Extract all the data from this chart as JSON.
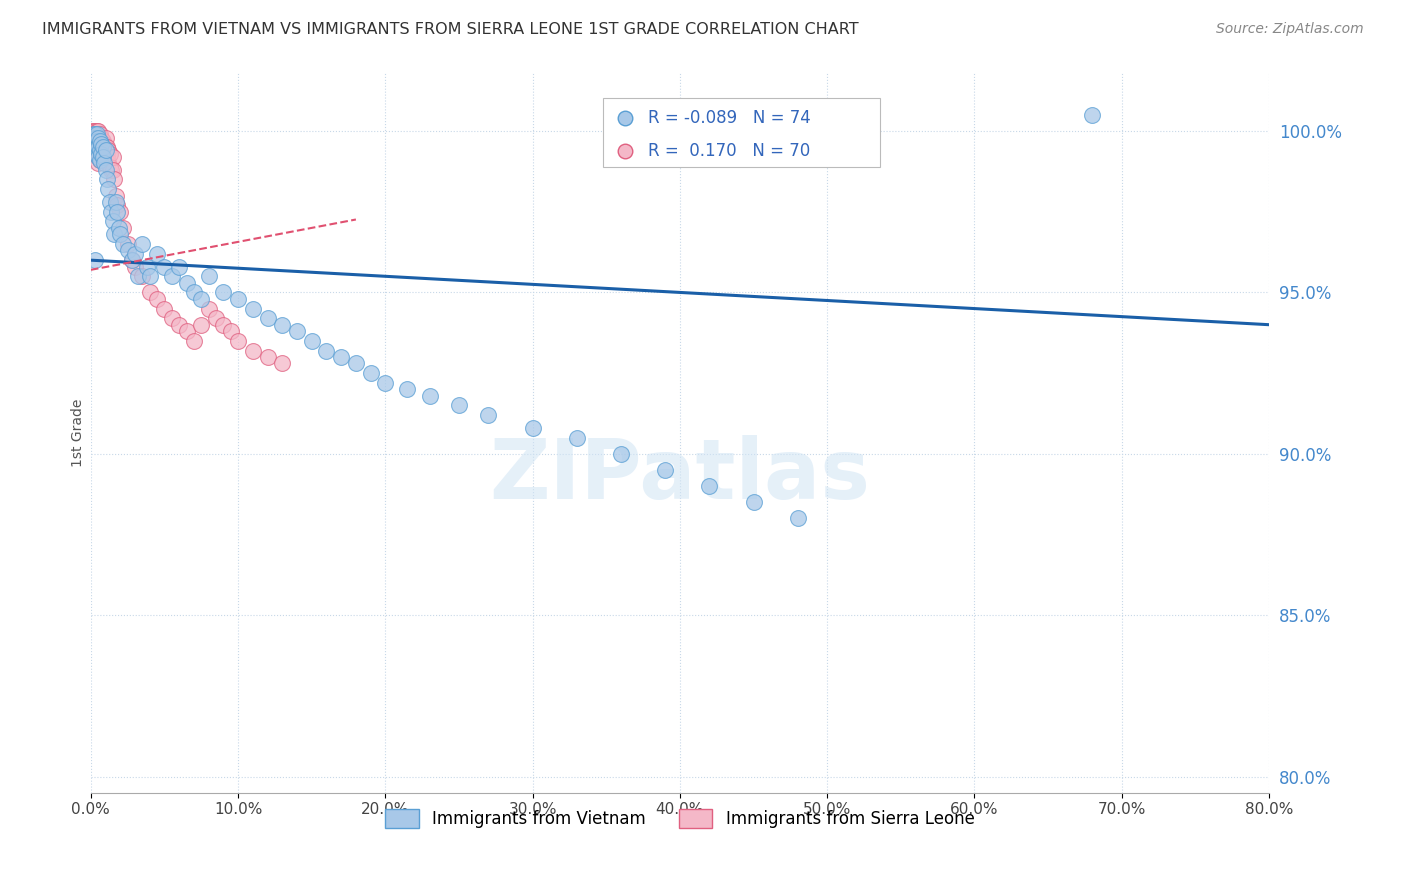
{
  "title": "IMMIGRANTS FROM VIETNAM VS IMMIGRANTS FROM SIERRA LEONE 1ST GRADE CORRELATION CHART",
  "source": "Source: ZipAtlas.com",
  "ylabel": "1st Grade",
  "x_range": [
    0.0,
    0.8
  ],
  "y_range": [
    0.795,
    1.018
  ],
  "vietnam_r": -0.089,
  "vietnam_n": 74,
  "sierraleone_r": 0.17,
  "sierraleone_n": 70,
  "vietnam_color": "#a8c8e8",
  "vietnam_edge_color": "#5a9fd4",
  "sierraleone_color": "#f4b8c8",
  "sierraleone_edge_color": "#e06080",
  "vietnam_trend_color": "#1a5fa8",
  "sierraleone_trend_color": "#e05070",
  "vietnam_scatter_x": [
    0.001,
    0.002,
    0.002,
    0.003,
    0.003,
    0.003,
    0.004,
    0.004,
    0.004,
    0.004,
    0.005,
    0.005,
    0.005,
    0.006,
    0.006,
    0.006,
    0.007,
    0.007,
    0.008,
    0.008,
    0.009,
    0.01,
    0.01,
    0.011,
    0.012,
    0.013,
    0.014,
    0.015,
    0.016,
    0.017,
    0.018,
    0.019,
    0.02,
    0.022,
    0.025,
    0.028,
    0.03,
    0.032,
    0.035,
    0.038,
    0.04,
    0.045,
    0.05,
    0.055,
    0.06,
    0.065,
    0.07,
    0.075,
    0.08,
    0.09,
    0.1,
    0.11,
    0.12,
    0.13,
    0.14,
    0.15,
    0.16,
    0.17,
    0.18,
    0.19,
    0.2,
    0.215,
    0.23,
    0.25,
    0.27,
    0.3,
    0.33,
    0.36,
    0.39,
    0.42,
    0.45,
    0.48,
    0.68,
    0.003
  ],
  "vietnam_scatter_y": [
    0.998,
    0.999,
    0.997,
    0.999,
    0.998,
    0.996,
    0.999,
    0.997,
    0.995,
    0.993,
    0.998,
    0.995,
    0.992,
    0.997,
    0.994,
    0.991,
    0.996,
    0.993,
    0.995,
    0.992,
    0.99,
    0.994,
    0.988,
    0.985,
    0.982,
    0.978,
    0.975,
    0.972,
    0.968,
    0.978,
    0.975,
    0.97,
    0.968,
    0.965,
    0.963,
    0.96,
    0.962,
    0.955,
    0.965,
    0.958,
    0.955,
    0.962,
    0.958,
    0.955,
    0.958,
    0.953,
    0.95,
    0.948,
    0.955,
    0.95,
    0.948,
    0.945,
    0.942,
    0.94,
    0.938,
    0.935,
    0.932,
    0.93,
    0.928,
    0.925,
    0.922,
    0.92,
    0.918,
    0.915,
    0.912,
    0.908,
    0.905,
    0.9,
    0.895,
    0.89,
    0.885,
    0.88,
    1.005,
    0.96
  ],
  "sierraleone_scatter_x": [
    0.001,
    0.001,
    0.001,
    0.002,
    0.002,
    0.002,
    0.002,
    0.003,
    0.003,
    0.003,
    0.003,
    0.003,
    0.004,
    0.004,
    0.004,
    0.004,
    0.005,
    0.005,
    0.005,
    0.005,
    0.005,
    0.006,
    0.006,
    0.006,
    0.006,
    0.007,
    0.007,
    0.007,
    0.008,
    0.008,
    0.008,
    0.009,
    0.009,
    0.01,
    0.01,
    0.01,
    0.011,
    0.011,
    0.012,
    0.012,
    0.013,
    0.013,
    0.014,
    0.015,
    0.015,
    0.016,
    0.017,
    0.018,
    0.02,
    0.022,
    0.025,
    0.028,
    0.03,
    0.035,
    0.04,
    0.045,
    0.05,
    0.055,
    0.06,
    0.065,
    0.07,
    0.075,
    0.08,
    0.085,
    0.09,
    0.095,
    0.1,
    0.11,
    0.12,
    0.13
  ],
  "sierraleone_scatter_y": [
    1.0,
    0.999,
    0.998,
    1.0,
    0.999,
    0.997,
    0.995,
    1.0,
    0.999,
    0.997,
    0.995,
    0.993,
    1.0,
    0.998,
    0.996,
    0.993,
    1.0,
    0.998,
    0.996,
    0.993,
    0.99,
    0.999,
    0.997,
    0.994,
    0.991,
    0.998,
    0.995,
    0.992,
    0.997,
    0.994,
    0.991,
    0.996,
    0.993,
    0.998,
    0.995,
    0.991,
    0.995,
    0.992,
    0.994,
    0.99,
    0.993,
    0.989,
    0.988,
    0.992,
    0.988,
    0.985,
    0.98,
    0.977,
    0.975,
    0.97,
    0.965,
    0.96,
    0.958,
    0.955,
    0.95,
    0.948,
    0.945,
    0.942,
    0.94,
    0.938,
    0.935,
    0.94,
    0.945,
    0.942,
    0.94,
    0.938,
    0.935,
    0.932,
    0.93,
    0.928
  ],
  "legend_bottom_labels": [
    "Immigrants from Vietnam",
    "Immigrants from Sierra Leone"
  ],
  "watermark": "ZIPatlas",
  "background_color": "#ffffff",
  "grid_color": "#c8d8e8",
  "title_color": "#333333",
  "axis_label_color": "#555555",
  "right_axis_color": "#4488cc",
  "legend_r_color": "#3366bb",
  "x_ticks": [
    0.0,
    0.1,
    0.2,
    0.3,
    0.4,
    0.5,
    0.6,
    0.7,
    0.8
  ],
  "y_ticks_right": [
    0.8,
    0.85,
    0.9,
    0.95,
    1.0
  ],
  "viet_trend_x0": 0.0,
  "viet_trend_y0": 0.96,
  "viet_trend_x1": 0.8,
  "viet_trend_y1": 0.94,
  "sl_trend_x0": 0.0,
  "sl_trend_y0": 0.957,
  "sl_trend_x1": 0.15,
  "sl_trend_y1": 0.97
}
